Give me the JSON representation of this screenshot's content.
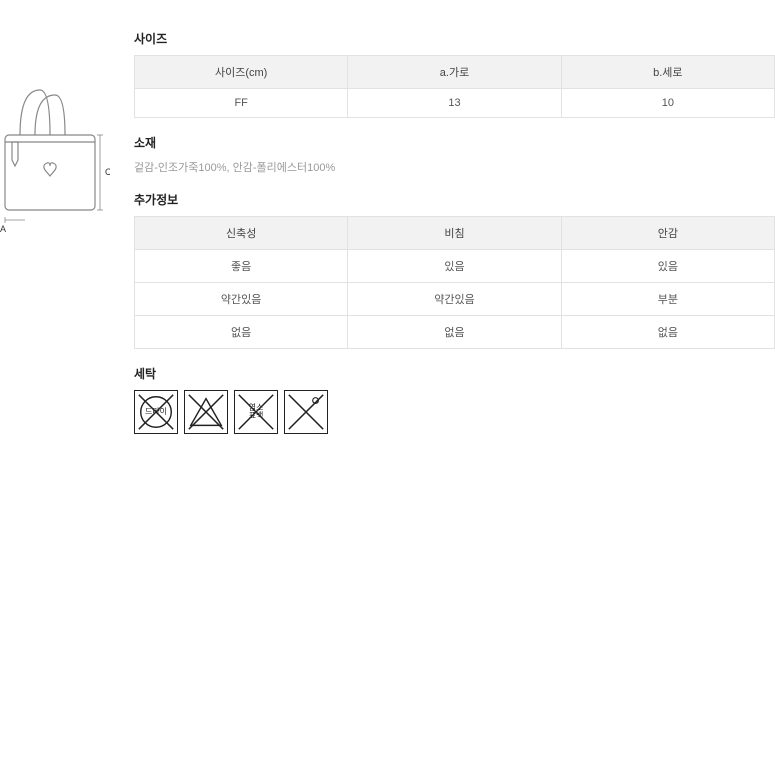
{
  "diagram": {
    "label_c": "C",
    "label_a": "A",
    "stroke": "#888888",
    "stroke_width": 1.2
  },
  "size_section": {
    "title": "사이즈",
    "table": {
      "header_bg": "#f2f2f2",
      "border_color": "#e2e2e2",
      "columns": [
        "사이즈(cm)",
        "a.가로",
        "b.세로"
      ],
      "row": [
        "FF",
        "13",
        "10"
      ]
    }
  },
  "material_section": {
    "title": "소재",
    "text": "겉감-인조가죽100%, 안감-폴리에스터100%",
    "text_color": "#999999"
  },
  "extra_section": {
    "title": "추가정보",
    "table": {
      "header_bg": "#f2f2f2",
      "border_color": "#e2e2e2",
      "columns": [
        "신축성",
        "비침",
        "안감"
      ],
      "rows": [
        [
          {
            "v": "좋음",
            "red": false
          },
          {
            "v": "있음",
            "red": false
          },
          {
            "v": "있음",
            "red": true
          }
        ],
        [
          {
            "v": "약간있음",
            "red": false
          },
          {
            "v": "약간있음",
            "red": false
          },
          {
            "v": "부분",
            "red": false
          }
        ],
        [
          {
            "v": "없음",
            "red": true
          },
          {
            "v": "없음",
            "red": true
          },
          {
            "v": "없음",
            "red": false
          }
        ]
      ],
      "highlight_color": "#e74c3c",
      "text_color": "#555555"
    }
  },
  "wash_section": {
    "title": "세탁",
    "icons": [
      {
        "shape": "circle",
        "label": "드라이"
      },
      {
        "shape": "triangle",
        "label": ""
      },
      {
        "shape": "square",
        "label": "염소\n표백"
      },
      {
        "shape": "square-dot",
        "label": ""
      }
    ],
    "icon_stroke": "#222222",
    "icon_border": "#222222"
  }
}
